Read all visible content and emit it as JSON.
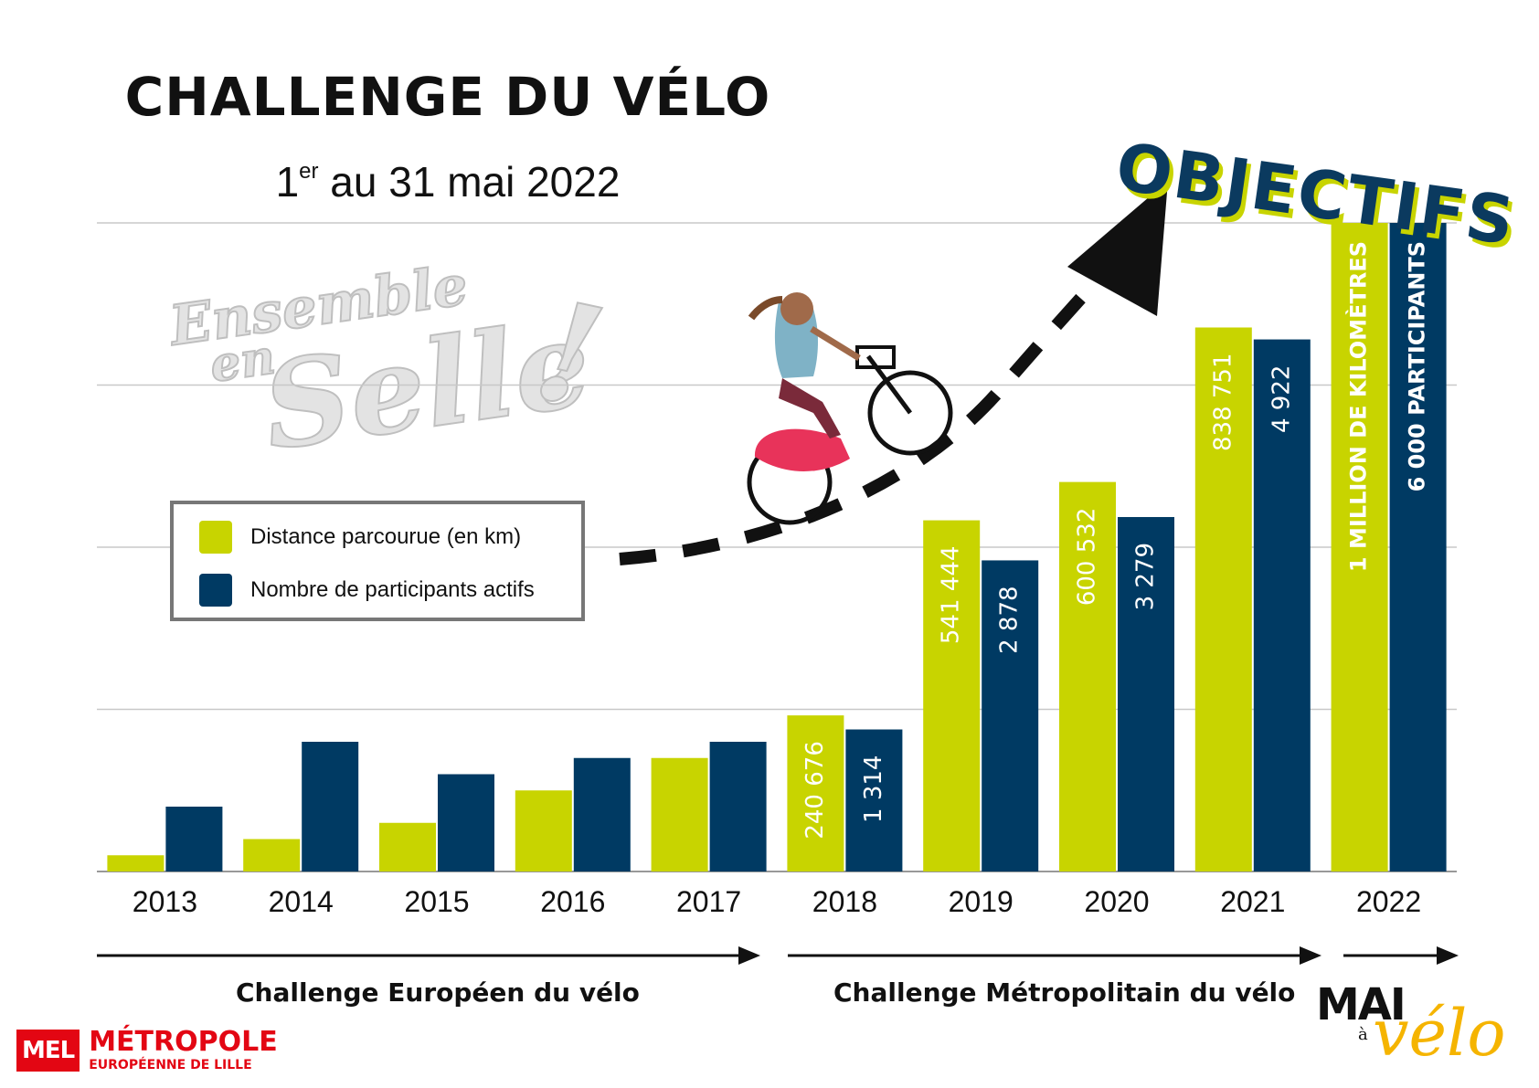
{
  "title": "CHALLENGE DU VÉLO",
  "subtitle": {
    "prefix": "1",
    "sup": "er",
    "rest": " au 31 mai 2022"
  },
  "objectifs": "OBJECTIFS",
  "watermark": {
    "line1": "Ensemble",
    "line2": "en",
    "line3": "Selle",
    "mark": "!"
  },
  "legend": [
    {
      "label": "Distance parcourue (en km)",
      "color": "#c8d400"
    },
    {
      "label": "Nombre de participants actifs",
      "color": "#003a63"
    }
  ],
  "eras": [
    {
      "label": "Challenge Européen du vélo"
    },
    {
      "label": "Challenge Métropolitain du vélo"
    }
  ],
  "logo": {
    "box": "MEL",
    "line1": "MÉTROPOLE",
    "line2": "EUROPÉENNE DE LILLE"
  },
  "mai_a_velo": {
    "mai": "MAI",
    "a": "à",
    "velo": "vélo"
  },
  "chart_data": {
    "type": "bar",
    "categories": [
      "2013",
      "2014",
      "2015",
      "2016",
      "2017",
      "2018",
      "2019",
      "2020",
      "2021",
      "2022"
    ],
    "ylim": [
      0,
      1000000
    ],
    "y2lim": [
      0,
      6000
    ],
    "grid": true,
    "series": [
      {
        "name": "Distance parcourue (en km)",
        "color": "#c8d400",
        "values": [
          25000,
          50000,
          75000,
          125000,
          175000,
          240676,
          541444,
          600532,
          838751,
          1000000
        ],
        "labels": [
          "",
          "",
          "",
          "",
          "",
          "240 676",
          "541 444",
          "600 532",
          "838 751",
          "1 MILLION DE KILOMÈTRES"
        ]
      },
      {
        "name": "Nombre de participants actifs",
        "color": "#003a63",
        "values": [
          600,
          1200,
          900,
          1050,
          1200,
          1314,
          2878,
          3279,
          4922,
          6000
        ],
        "labels": [
          "",
          "",
          "",
          "",
          "",
          "1 314",
          "2 878",
          "3 279",
          "4 922",
          "6 000 PARTICIPANTS"
        ]
      }
    ]
  }
}
